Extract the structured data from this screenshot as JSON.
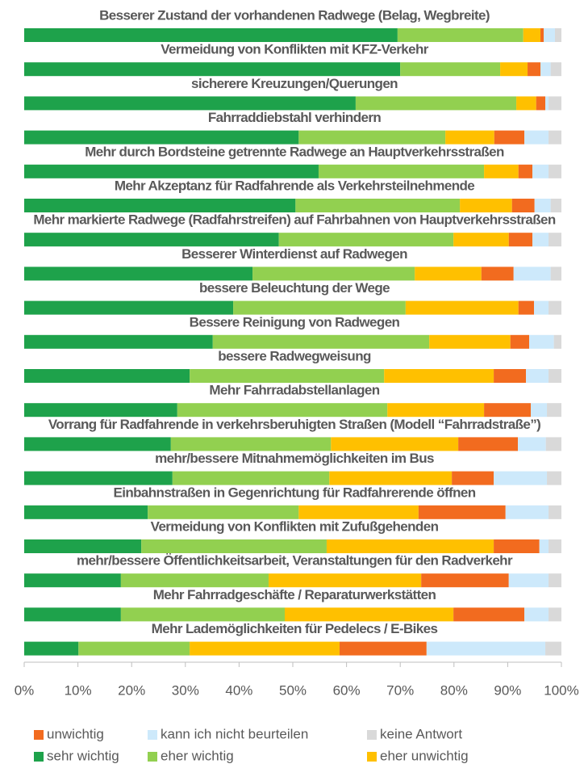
{
  "chart_data": {
    "type": "stacked_barh",
    "categories": [
      "Besserer Zustand der vorhandenen Radwege (Belag, Wegbreite)",
      "Vermeidung von Konflikten mit KFZ-Verkehr",
      "sicherere Kreuzungen/Querungen",
      "Fahrraddiebstahl verhindern",
      "Mehr durch Bordsteine getrennte Radwege an Hauptverkehrsstraßen",
      "Mehr Akzeptanz für Radfahrende als Verkehrsteilnehmende",
      "Mehr markierte Radwege (Radfahrstreifen) auf Fahrbahnen von Hauptverkehrsstraßen",
      "Besserer Winterdienst auf Radwegen",
      "bessere Beleuchtung der Wege",
      "Bessere Reinigung von Radwegen",
      "bessere Radwegweisung",
      "Mehr Fahrradabstellanlagen",
      "Vorrang für Radfahrende in verkehrsberuhigten Straßen (Modell “Fahrradstraße”)",
      "mehr/bessere Mitnahmemöglichkeiten im Bus",
      "Einbahnstraßen in Gegenrichtung für Radfahrerende öffnen",
      "Vermeidung von Konflikten mit Zufußgehenden",
      "mehr/bessere Öffentlichkeitsarbeit, Veranstaltungen für den Radverkehr",
      "Mehr Fahrradgeschäfte / Reparaturwerkstätten",
      "Mehr Lademöglichkeiten für Pedelecs / E-Bikes"
    ],
    "series": [
      {
        "name": "sehr wichtig",
        "color": "#1ea24b",
        "values": [
          69.5,
          70.0,
          61.7,
          51.1,
          54.8,
          50.5,
          47.4,
          42.5,
          38.9,
          35.1,
          30.8,
          28.5,
          27.3,
          27.6,
          23.0,
          21.8,
          18.0,
          18.0,
          10.1
        ]
      },
      {
        "name": "eher wichtig",
        "color": "#92d050",
        "values": [
          23.4,
          18.6,
          29.9,
          27.3,
          30.8,
          30.6,
          32.5,
          30.2,
          32.1,
          40.3,
          36.2,
          39.1,
          29.8,
          29.2,
          28.1,
          34.5,
          27.5,
          30.5,
          20.7
        ]
      },
      {
        "name": "eher unwichtig",
        "color": "#ffc000",
        "values": [
          3.2,
          5.1,
          3.7,
          9.1,
          6.4,
          9.7,
          10.3,
          12.4,
          21.0,
          15.1,
          20.4,
          18.0,
          23.7,
          22.8,
          22.3,
          31.1,
          28.4,
          31.4,
          27.9
        ]
      },
      {
        "name": "unwichtig",
        "color": "#f26b1f",
        "values": [
          0.6,
          2.4,
          1.7,
          5.6,
          2.6,
          4.2,
          4.4,
          6.0,
          2.9,
          3.5,
          6.0,
          8.7,
          11.1,
          7.8,
          16.2,
          8.5,
          16.3,
          13.2,
          16.2
        ]
      },
      {
        "name": "kann ich nicht beurteilen",
        "color": "#cde9fb",
        "values": [
          2.1,
          1.9,
          0.6,
          4.5,
          3.0,
          3.0,
          3.0,
          6.9,
          2.7,
          4.6,
          4.2,
          3.0,
          5.2,
          9.9,
          8.0,
          1.7,
          7.4,
          4.5,
          22.1
        ]
      },
      {
        "name": "keine Antwort",
        "color": "#d9d9d9",
        "values": [
          1.2,
          2.0,
          2.4,
          2.4,
          2.4,
          2.0,
          2.4,
          2.0,
          2.4,
          1.4,
          2.4,
          2.7,
          2.9,
          2.7,
          2.4,
          2.4,
          2.4,
          2.4,
          3.0
        ]
      }
    ],
    "xlim": [
      0,
      100
    ],
    "xticks": [
      {
        "value": 0,
        "label": "0%"
      },
      {
        "value": 10,
        "label": "10%"
      },
      {
        "value": 20,
        "label": "20%"
      },
      {
        "value": 30,
        "label": "30%"
      },
      {
        "value": 40,
        "label": "40%"
      },
      {
        "value": 50,
        "label": "50%"
      },
      {
        "value": 60,
        "label": "60%"
      },
      {
        "value": 70,
        "label": "70%"
      },
      {
        "value": 80,
        "label": "80%"
      },
      {
        "value": 90,
        "label": "90%"
      },
      {
        "value": 100,
        "label": "100%"
      }
    ],
    "legend": "bottom"
  }
}
